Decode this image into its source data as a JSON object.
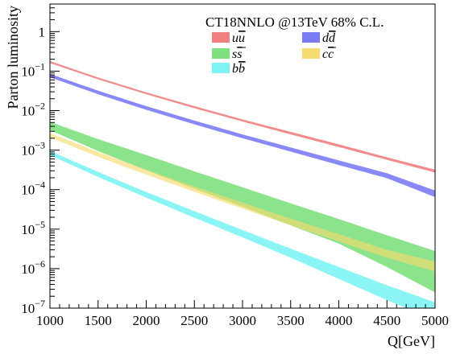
{
  "chart_data": {
    "type": "area",
    "title": "CT18NNLO @13TeV 68% C.L.",
    "xlabel": "Q[GeV]",
    "ylabel": "Parton luminosity",
    "xlim": [
      1000,
      5000
    ],
    "ylim": [
      1e-07,
      5
    ],
    "yscale": "log",
    "grid": false,
    "legend_position": "top-right",
    "x_ticks": [
      "1000",
      "1500",
      "2000",
      "2500",
      "3000",
      "3500",
      "4000",
      "4500",
      "5000"
    ],
    "y_ticks": [
      {
        "value": 1e-07,
        "base": "10",
        "exp": "−7"
      },
      {
        "value": 1e-06,
        "base": "10",
        "exp": "−6"
      },
      {
        "value": 1e-05,
        "base": "10",
        "exp": "−5"
      },
      {
        "value": 0.0001,
        "base": "10",
        "exp": "−4"
      },
      {
        "value": 0.001,
        "base": "10",
        "exp": "−3"
      },
      {
        "value": 0.01,
        "base": "10",
        "exp": "−2"
      },
      {
        "value": 0.1,
        "base": "10",
        "exp": "−1"
      },
      {
        "value": 1,
        "base": "1",
        "exp": ""
      }
    ],
    "x": [
      1000,
      1500,
      2000,
      2500,
      3000,
      3500,
      4000,
      4500,
      5000
    ],
    "series": [
      {
        "name": "uū",
        "name_base": "u",
        "name_bar": "u",
        "color": "#f08080",
        "lower": [
          0.16,
          0.062,
          0.026,
          0.0115,
          0.0053,
          0.0025,
          0.0012,
          0.00057,
          0.00027
        ],
        "upper": [
          0.18,
          0.069,
          0.029,
          0.013,
          0.006,
          0.0029,
          0.0014,
          0.00066,
          0.00032
        ]
      },
      {
        "name": "dd̄",
        "name_base": "d",
        "name_bar": "d",
        "color": "#7b7bf5",
        "lower": [
          0.07,
          0.026,
          0.0105,
          0.0045,
          0.002,
          0.00092,
          0.00042,
          0.000195,
          6.5e-05
        ],
        "upper": [
          0.085,
          0.032,
          0.013,
          0.0056,
          0.0025,
          0.00117,
          0.00055,
          0.00026,
          9.5e-05
        ]
      },
      {
        "name": "ss̄",
        "name_base": "s",
        "name_bar": "s",
        "color": "#7ee07e",
        "lower": [
          0.0032,
          0.00095,
          0.00031,
          0.000105,
          3.7e-05,
          1.25e-05,
          4.3e-06,
          1.1e-06,
          2.5e-07
        ],
        "upper": [
          0.0052,
          0.0019,
          0.00075,
          0.00029,
          0.000115,
          4.5e-05,
          1.8e-05,
          7e-06,
          2.8e-06
        ]
      },
      {
        "name": "cc̄",
        "name_base": "c",
        "name_bar": "c",
        "color": "#f5dc70",
        "lower": [
          0.0021,
          0.00068,
          0.00024,
          8.8e-05,
          3.3e-05,
          1.25e-05,
          4.9e-06,
          1.9e-06,
          8.5e-07
        ],
        "upper": [
          0.0027,
          0.0009,
          0.00032,
          0.00012,
          4.7e-05,
          1.85e-05,
          7.5e-06,
          3e-06,
          1.5e-06
        ]
      },
      {
        "name": "bb̄",
        "name_base": "b",
        "name_bar": "b",
        "color": "#7ef3f3",
        "lower": [
          0.00075,
          0.00021,
          6.3e-05,
          1.95e-05,
          6.2e-06,
          1.9e-06,
          5.5e-07,
          1.6e-07,
          5e-08
        ],
        "upper": [
          0.00095,
          0.00028,
          8.7e-05,
          2.85e-05,
          9.5e-06,
          3.2e-06,
          1.1e-06,
          3.8e-07,
          1.4e-07
        ]
      }
    ],
    "legend_order": [
      0,
      1,
      2,
      3,
      4
    ]
  }
}
